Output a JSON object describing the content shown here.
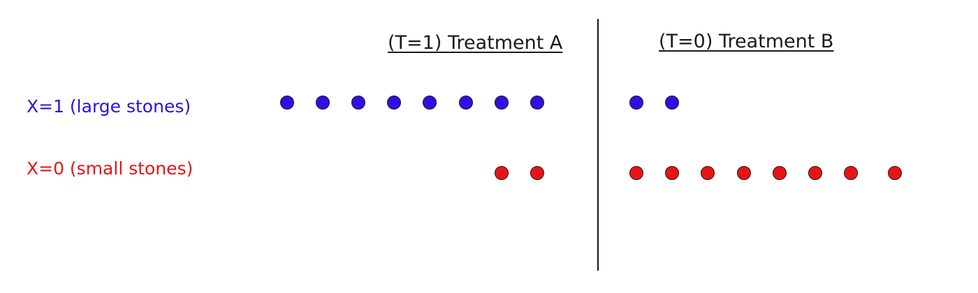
{
  "headers": {
    "treatment_a": "(T=1) Treatment A",
    "treatment_b": "(T=0) Treatment B"
  },
  "rows": {
    "large": {
      "label": "X=1 (large stones)",
      "color": "#2e10e6"
    },
    "small": {
      "label": "X=0 (small stones)",
      "color": "#e81414"
    }
  },
  "counts": {
    "treatment_a": {
      "large": 8,
      "small": 2
    },
    "treatment_b": {
      "large": 2,
      "small": 8
    }
  },
  "divider_color": "#1a1a1a"
}
